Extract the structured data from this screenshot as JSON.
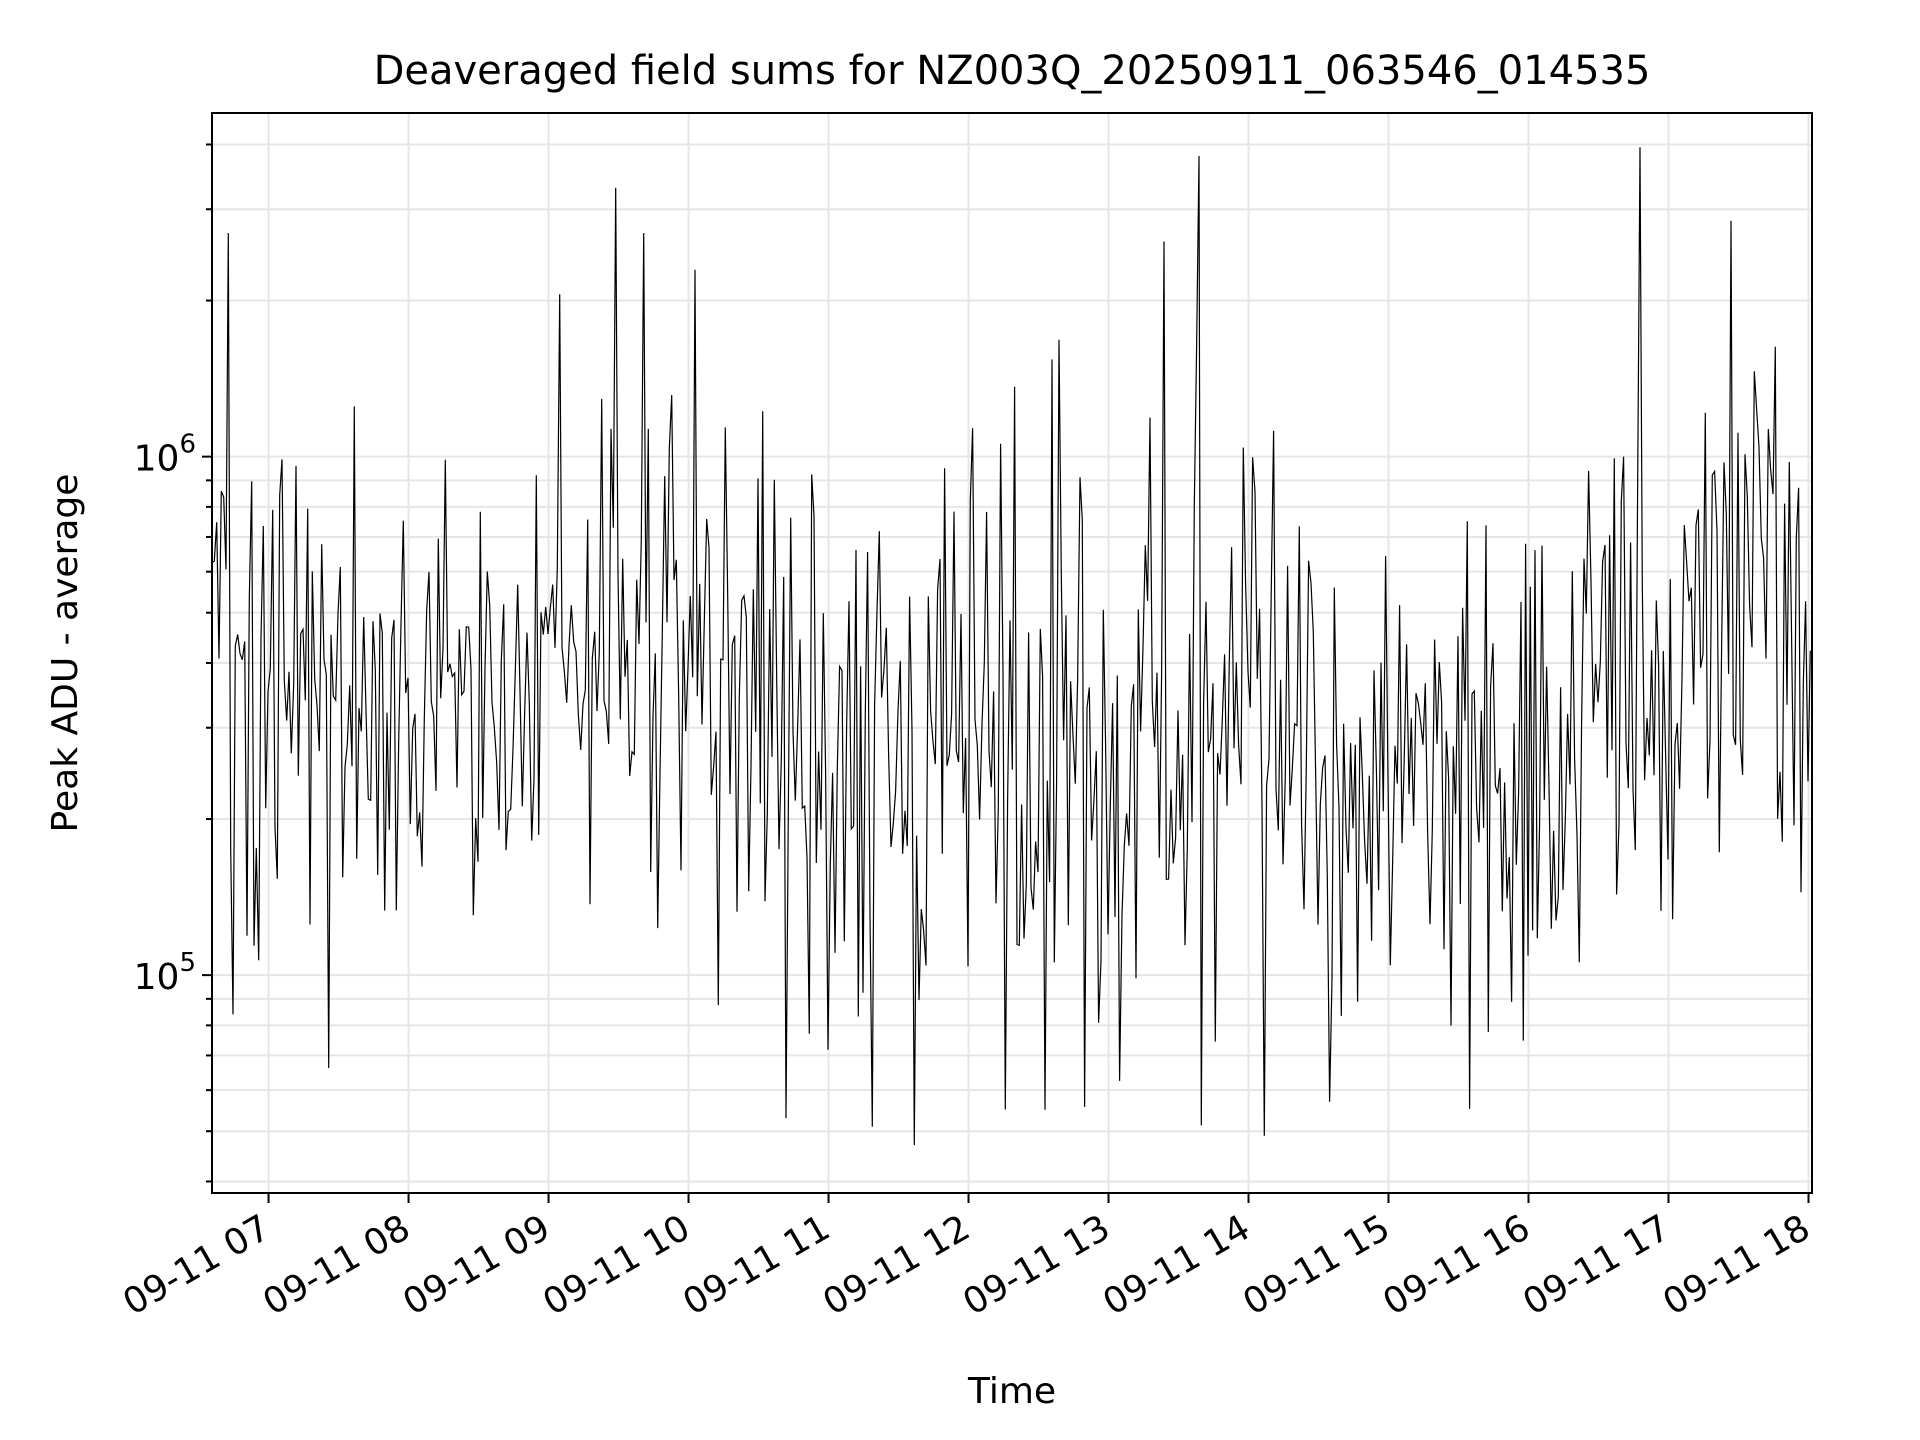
{
  "chart_data": {
    "type": "line",
    "title": "Deaveraged field sums for NZ003Q_20250911_063546_014535",
    "xlabel": "Time",
    "ylabel": "Peak ADU - average",
    "x_ticks": [
      "09-11 07",
      "09-11 08",
      "09-11 09",
      "09-11 10",
      "09-11 11",
      "09-11 12",
      "09-11 13",
      "09-11 14",
      "09-11 15",
      "09-11 16",
      "09-11 17",
      "09-11 18"
    ],
    "y_ticks": [
      {
        "value": 100000,
        "base": "10",
        "exp": "5"
      },
      {
        "value": 1000000,
        "base": "10",
        "exp": "6"
      }
    ],
    "x_range": [
      "2025-09-11 06:35:46",
      "2025-09-11 18:01:30"
    ],
    "ylim": [
      38000,
      4600000
    ],
    "yscale": "log",
    "grid": true,
    "legend": "none",
    "line_color": "#000000",
    "series": [
      {
        "x_start": "2025-09-11 06:35:46",
        "x_step_seconds": 60,
        "baseline_by_hour": [
          {
            "hour": "09-11 07",
            "value": 420000
          },
          {
            "hour": "09-11 08",
            "value": 330000
          },
          {
            "hour": "09-11 09",
            "value": 430000
          },
          {
            "hour": "09-11 10",
            "value": 380000
          },
          {
            "hour": "09-11 11",
            "value": 260000
          },
          {
            "hour": "09-11 12",
            "value": 300000
          },
          {
            "hour": "09-11 13",
            "value": 250000
          },
          {
            "hour": "09-11 14",
            "value": 330000
          },
          {
            "hour": "09-11 15",
            "value": 220000
          },
          {
            "hour": "09-11 16",
            "value": 260000
          },
          {
            "hour": "09-11 17",
            "value": 430000
          },
          {
            "hour": "09-11 18",
            "value": 470000
          }
        ],
        "peaks": [
          {
            "time": "2025-09-11 06:43:00",
            "value": 2700000
          },
          {
            "time": "2025-09-11 09:29:00",
            "value": 3300000
          },
          {
            "time": "2025-09-11 09:41:00",
            "value": 2700000
          },
          {
            "time": "2025-09-11 13:24:00",
            "value": 2600000
          },
          {
            "time": "2025-09-11 13:39:00",
            "value": 3800000
          },
          {
            "time": "2025-09-11 16:48:00",
            "value": 3950000
          },
          {
            "time": "2025-09-11 17:27:00",
            "value": 2850000
          }
        ],
        "troughs": [
          {
            "time": "2025-09-11 10:42:00",
            "value": 53000
          },
          {
            "time": "2025-09-11 11:19:00",
            "value": 51000
          },
          {
            "time": "2025-09-11 11:37:00",
            "value": 47000
          },
          {
            "time": "2025-09-11 12:33:00",
            "value": 55000
          },
          {
            "time": "2025-09-11 14:07:00",
            "value": 49000
          },
          {
            "time": "2025-09-11 14:35:00",
            "value": 57000
          }
        ]
      }
    ]
  }
}
